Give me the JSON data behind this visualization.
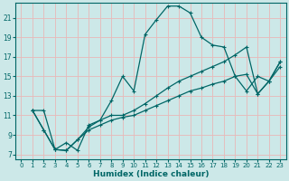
{
  "xlabel": "Humidex (Indice chaleur)",
  "bg_color": "#cce8e8",
  "line_color": "#006666",
  "marker": "+",
  "markersize": 3.5,
  "linewidth": 0.9,
  "xlim": [
    -0.5,
    23.5
  ],
  "ylim": [
    6.5,
    22.5
  ],
  "xticks": [
    0,
    1,
    2,
    3,
    4,
    5,
    6,
    7,
    8,
    9,
    10,
    11,
    12,
    13,
    14,
    15,
    16,
    17,
    18,
    19,
    20,
    21,
    22,
    23
  ],
  "yticks": [
    7,
    9,
    11,
    13,
    15,
    17,
    19,
    21
  ],
  "grid_color": "#e8b8b8",
  "lines": [
    {
      "x": [
        1,
        2,
        3,
        4,
        5,
        6,
        7,
        8,
        9,
        10,
        11,
        12,
        13,
        14,
        15,
        16,
        17,
        18,
        19,
        20,
        21,
        22,
        23
      ],
      "y": [
        11.5,
        11.5,
        7.5,
        8.2,
        7.4,
        10.0,
        10.5,
        12.5,
        15.0,
        13.5,
        19.3,
        20.8,
        22.2,
        22.2,
        21.5,
        19.0,
        18.2,
        18.0,
        15.0,
        13.5,
        15.0,
        14.5,
        16.0
      ]
    },
    {
      "x": [
        1,
        2,
        3,
        4,
        5,
        6,
        7,
        8,
        9,
        10,
        11,
        12,
        13,
        14,
        15,
        16,
        17,
        18,
        19,
        20,
        21,
        22,
        23
      ],
      "y": [
        11.5,
        9.5,
        7.5,
        7.4,
        8.5,
        9.8,
        10.5,
        11.0,
        11.0,
        11.5,
        12.2,
        13.0,
        13.8,
        14.5,
        15.0,
        15.5,
        16.0,
        16.5,
        17.2,
        18.0,
        13.2,
        14.5,
        16.5
      ]
    },
    {
      "x": [
        1,
        2,
        3,
        4,
        5,
        6,
        7,
        8,
        9,
        10,
        11,
        12,
        13,
        14,
        15,
        16,
        17,
        18,
        19,
        20,
        21,
        22,
        23
      ],
      "y": [
        11.5,
        9.5,
        7.5,
        7.4,
        8.5,
        9.5,
        10.0,
        10.5,
        10.8,
        11.0,
        11.5,
        12.0,
        12.5,
        13.0,
        13.5,
        13.8,
        14.2,
        14.5,
        15.0,
        15.2,
        13.2,
        14.5,
        16.5
      ]
    }
  ]
}
